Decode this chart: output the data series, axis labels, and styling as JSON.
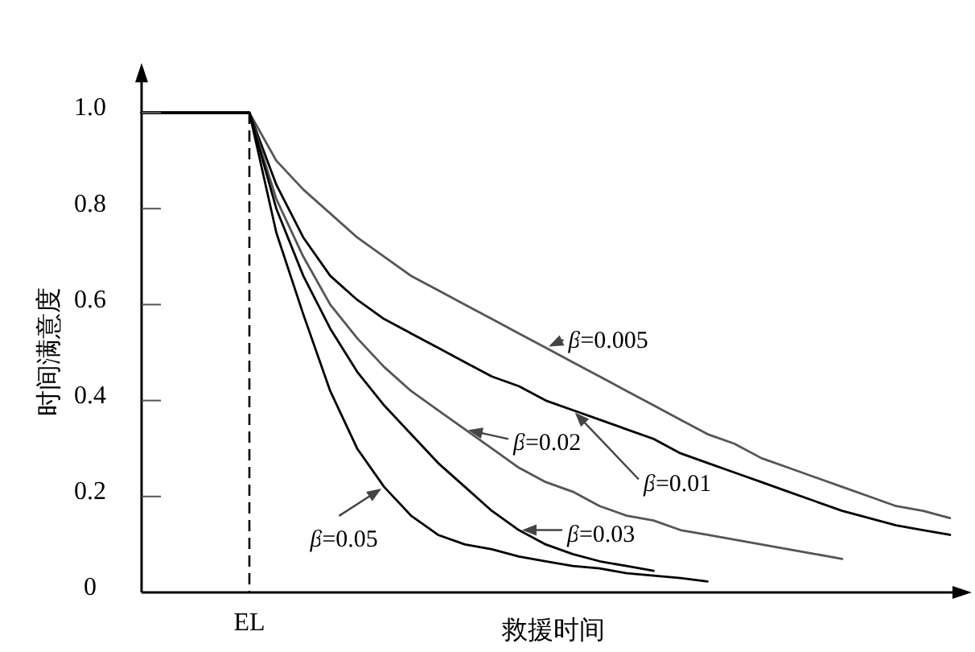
{
  "chart_data": {
    "type": "line",
    "xlabel": "救援时间",
    "ylabel": "时间满意度",
    "categories": [
      null,
      null,
      null,
      null,
      "EL",
      null,
      null,
      null,
      null,
      null,
      null,
      null,
      null,
      null,
      null,
      null,
      null,
      null,
      null,
      null,
      null,
      null,
      null,
      null,
      null,
      null,
      null,
      null,
      null,
      null,
      null
    ],
    "series": [
      {
        "name": "β=0.005",
        "color": "#555555",
        "values": [
          1.0,
          1.0,
          1.0,
          1.0,
          1.0,
          0.9,
          0.84,
          0.79,
          0.74,
          0.7,
          0.66,
          0.63,
          0.6,
          0.57,
          0.54,
          0.51,
          0.48,
          0.45,
          0.42,
          0.39,
          0.36,
          0.33,
          0.31,
          0.28,
          0.26,
          0.24,
          0.22,
          0.2,
          0.18,
          0.17,
          0.155
        ]
      },
      {
        "name": "β=0.01",
        "color": "#000000",
        "values": [
          1.0,
          1.0,
          1.0,
          1.0,
          1.0,
          0.85,
          0.74,
          0.66,
          0.61,
          0.57,
          0.54,
          0.51,
          0.48,
          0.45,
          0.43,
          0.4,
          0.38,
          0.36,
          0.34,
          0.32,
          0.29,
          0.27,
          0.25,
          0.23,
          0.21,
          0.19,
          0.17,
          0.155,
          0.14,
          0.13,
          0.12
        ]
      },
      {
        "name": "β=0.02",
        "color": "#555555",
        "values": [
          1.0,
          1.0,
          1.0,
          1.0,
          1.0,
          0.82,
          0.7,
          0.6,
          0.53,
          0.47,
          0.42,
          0.38,
          0.34,
          0.3,
          0.26,
          0.23,
          0.21,
          0.18,
          0.16,
          0.15,
          0.13,
          0.12,
          0.11,
          0.1,
          0.09,
          0.08,
          0.07,
          null,
          null,
          null,
          null
        ]
      },
      {
        "name": "β=0.03",
        "color": "#000000",
        "values": [
          1.0,
          1.0,
          1.0,
          1.0,
          1.0,
          0.8,
          0.66,
          0.55,
          0.46,
          0.39,
          0.33,
          0.27,
          0.22,
          0.17,
          0.13,
          0.1,
          0.08,
          0.065,
          0.055,
          0.045,
          null,
          null,
          null,
          null,
          null,
          null,
          null,
          null,
          null,
          null,
          null
        ]
      },
      {
        "name": "β=0.05",
        "color": "#000000",
        "values": [
          1.0,
          1.0,
          1.0,
          1.0,
          1.0,
          0.75,
          0.58,
          0.42,
          0.3,
          0.22,
          0.16,
          0.12,
          0.1,
          0.09,
          0.075,
          0.065,
          0.055,
          0.05,
          0.04,
          0.035,
          0.03,
          0.023,
          null,
          null,
          null,
          null,
          null,
          null,
          null,
          null,
          null
        ]
      }
    ],
    "ylim": [
      0,
      1.07
    ],
    "yticks": [
      0,
      0.2,
      0.4,
      0.6,
      0.8,
      {
        "value": 1,
        "label": "1.0"
      }
    ],
    "ref_lines": [
      {
        "axis": "x",
        "value": "EL",
        "line_style": "dashed"
      }
    ],
    "marker": "none",
    "line_style": "solid"
  }
}
